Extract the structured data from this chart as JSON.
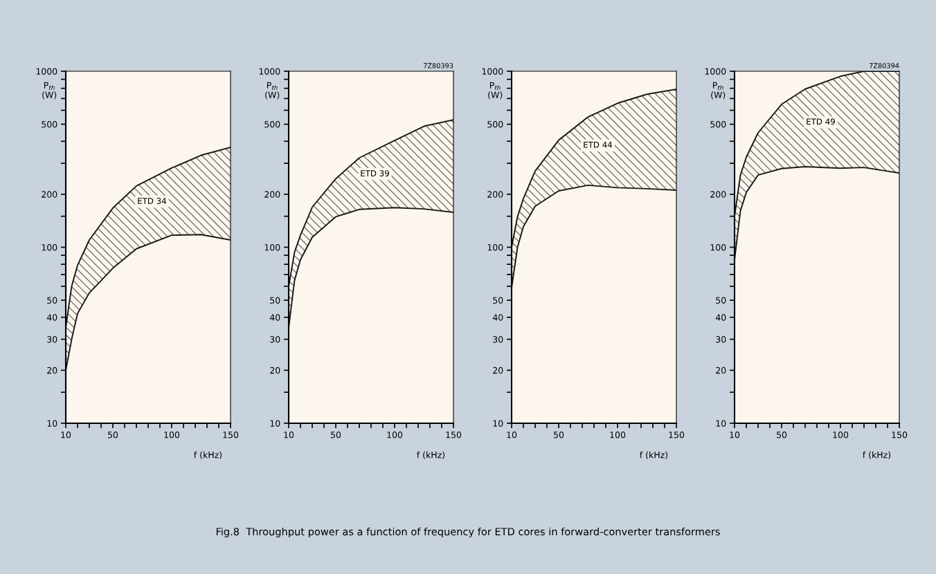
{
  "chart_data": [
    {
      "type": "line",
      "title": "Fig.8  Throughput power as a function of frequency for ETD cores in forward-converter transformers",
      "ylabel": "P$_{th}$\n(W)",
      "xlabel": "f (kHz)",
      "log": "y",
      "grid": false,
      "legend": false,
      "xlim": [
        10,
        150
      ],
      "xticks": [
        10,
        {
          "value": 20,
          "label": null
        },
        {
          "value": 30,
          "label": null
        },
        {
          "value": 40,
          "label": null
        },
        50,
        {
          "value": 60,
          "label": null
        },
        {
          "value": 70,
          "label": null
        },
        {
          "value": 80,
          "label": null
        },
        {
          "value": 90,
          "label": null
        },
        100,
        {
          "value": 110,
          "label": null
        },
        {
          "value": 120,
          "label": null
        },
        {
          "value": 130,
          "label": null
        },
        {
          "value": 140,
          "label": null
        },
        150
      ],
      "ylim": [
        10,
        1000
      ],
      "yticks": [
        10,
        {
          "value": 15,
          "label": null
        },
        20,
        30,
        40,
        50,
        {
          "value": 60,
          "label": null
        },
        {
          "value": 70,
          "label": null
        },
        {
          "value": 80,
          "label": null
        },
        {
          "value": 90,
          "label": null
        },
        100,
        {
          "value": 150,
          "label": null
        },
        200,
        {
          "value": 300,
          "label": null
        },
        {
          "value": 400,
          "label": null
        },
        500,
        {
          "value": 600,
          "label": null
        },
        {
          "value": 700,
          "label": null
        },
        {
          "value": 800,
          "label": null
        },
        {
          "value": 900,
          "label": null
        },
        1000
      ],
      "annotations": [
        "ETD 34"
      ],
      "series": [
        {
          "color": "#1a1a1a",
          "x": [
            10,
            15,
            20,
            30,
            50,
            70,
            100,
            125,
            150
          ],
          "values": [
            20,
            30,
            42,
            55,
            76,
            98,
            117,
            118,
            110
          ]
        },
        {
          "color": "#1a1a1a",
          "x": [
            10,
            15,
            20,
            30,
            50,
            70,
            100,
            125,
            150
          ],
          "values": [
            35,
            60,
            79,
            110,
            167,
            223,
            282,
            333,
            370
          ],
          "lower": [
            20,
            30,
            42,
            55,
            76,
            98,
            117,
            118,
            110
          ],
          "upper": [
            35,
            60,
            79,
            110,
            167,
            223,
            282,
            333,
            370
          ]
        }
      ]
    },
    {
      "type": "line",
      "ylabel": "P$_{th}$\n(W)",
      "xlabel": "f (kHz)",
      "log": "y",
      "grid": false,
      "legend": false,
      "xlim": [
        10,
        150
      ],
      "xticks": [
        10,
        {
          "value": 20,
          "label": null
        },
        {
          "value": 30,
          "label": null
        },
        {
          "value": 40,
          "label": null
        },
        50,
        {
          "value": 60,
          "label": null
        },
        {
          "value": 70,
          "label": null
        },
        {
          "value": 80,
          "label": null
        },
        {
          "value": 90,
          "label": null
        },
        100,
        {
          "value": 110,
          "label": null
        },
        {
          "value": 120,
          "label": null
        },
        {
          "value": 130,
          "label": null
        },
        {
          "value": 140,
          "label": null
        },
        150
      ],
      "ylim": [
        10,
        1000
      ],
      "yticks": [
        10,
        {
          "value": 15,
          "label": null
        },
        20,
        30,
        40,
        50,
        {
          "value": 60,
          "label": null
        },
        {
          "value": 70,
          "label": null
        },
        {
          "value": 80,
          "label": null
        },
        {
          "value": 90,
          "label": null
        },
        100,
        {
          "value": 150,
          "label": null
        },
        200,
        {
          "value": 300,
          "label": null
        },
        {
          "value": 400,
          "label": null
        },
        500,
        {
          "value": 600,
          "label": null
        },
        {
          "value": 700,
          "label": null
        },
        {
          "value": 800,
          "label": null
        },
        {
          "value": 900,
          "label": null
        },
        1000
      ],
      "annotations": [
        "ETD 39",
        "7Z80393"
      ],
      "series": [
        {
          "color": "#1a1a1a",
          "x": [
            10,
            15,
            20,
            30,
            50,
            70,
            100,
            125,
            150
          ],
          "values": [
            35,
            65,
            85,
            114,
            149,
            164,
            168,
            165,
            158
          ]
        },
        {
          "color": "#1a1a1a",
          "x": [
            10,
            15,
            20,
            30,
            50,
            70,
            100,
            125,
            150
          ],
          "values": [
            60,
            94,
            117,
            169,
            245,
            322,
            404,
            487,
            530
          ],
          "lower": [
            35,
            65,
            85,
            114,
            149,
            164,
            168,
            165,
            158
          ],
          "upper": [
            60,
            94,
            117,
            169,
            245,
            322,
            404,
            487,
            530
          ]
        }
      ]
    },
    {
      "type": "line",
      "ylabel": "P$_{th}$\n(W)",
      "xlabel": "f (kHz)",
      "log": "y",
      "grid": false,
      "legend": false,
      "xlim": [
        10,
        150
      ],
      "xticks": [
        10,
        {
          "value": 20,
          "label": null
        },
        {
          "value": 30,
          "label": null
        },
        {
          "value": 40,
          "label": null
        },
        50,
        {
          "value": 60,
          "label": null
        },
        {
          "value": 70,
          "label": null
        },
        {
          "value": 80,
          "label": null
        },
        {
          "value": 90,
          "label": null
        },
        100,
        {
          "value": 110,
          "label": null
        },
        {
          "value": 120,
          "label": null
        },
        {
          "value": 130,
          "label": null
        },
        {
          "value": 140,
          "label": null
        },
        150
      ],
      "ylim": [
        10,
        1000
      ],
      "yticks": [
        10,
        {
          "value": 15,
          "label": null
        },
        20,
        30,
        40,
        50,
        {
          "value": 60,
          "label": null
        },
        {
          "value": 70,
          "label": null
        },
        {
          "value": 80,
          "label": null
        },
        {
          "value": 90,
          "label": null
        },
        100,
        {
          "value": 150,
          "label": null
        },
        200,
        {
          "value": 300,
          "label": null
        },
        {
          "value": 400,
          "label": null
        },
        500,
        {
          "value": 600,
          "label": null
        },
        {
          "value": 700,
          "label": null
        },
        {
          "value": 800,
          "label": null
        },
        {
          "value": 900,
          "label": null
        },
        1000
      ],
      "annotations": [
        "ETD 44"
      ],
      "series": [
        {
          "color": "#1a1a1a",
          "x": [
            10,
            15,
            20,
            30,
            50,
            75,
            100,
            125,
            150
          ],
          "values": [
            59,
            100,
            131,
            171,
            209,
            225,
            218,
            215,
            211
          ]
        },
        {
          "color": "#1a1a1a",
          "x": [
            10,
            15,
            20,
            30,
            50,
            75,
            100,
            125,
            150
          ],
          "values": [
            100,
            149,
            189,
            271,
            406,
            550,
            658,
            740,
            790
          ],
          "lower": [
            59,
            100,
            131,
            171,
            209,
            225,
            218,
            215,
            211
          ],
          "upper": [
            100,
            149,
            189,
            271,
            406,
            550,
            658,
            740,
            790
          ]
        }
      ]
    },
    {
      "type": "line",
      "ylabel": "P$_{th}$\n(W)",
      "xlabel": "f (kHz)",
      "log": "y",
      "grid": false,
      "legend": false,
      "xlim": [
        10,
        150
      ],
      "xticks": [
        10,
        {
          "value": 20,
          "label": null
        },
        {
          "value": 30,
          "label": null
        },
        {
          "value": 40,
          "label": null
        },
        50,
        {
          "value": 60,
          "label": null
        },
        {
          "value": 70,
          "label": null
        },
        {
          "value": 80,
          "label": null
        },
        {
          "value": 90,
          "label": null
        },
        100,
        {
          "value": 110,
          "label": null
        },
        {
          "value": 120,
          "label": null
        },
        {
          "value": 130,
          "label": null
        },
        {
          "value": 140,
          "label": null
        },
        150
      ],
      "ylim": [
        10,
        1000
      ],
      "yticks": [
        10,
        {
          "value": 15,
          "label": null
        },
        20,
        30,
        40,
        50,
        {
          "value": 60,
          "label": null
        },
        {
          "value": 70,
          "label": null
        },
        {
          "value": 80,
          "label": null
        },
        {
          "value": 90,
          "label": null
        },
        100,
        {
          "value": 150,
          "label": null
        },
        200,
        {
          "value": 300,
          "label": null
        },
        {
          "value": 400,
          "label": null
        },
        500,
        {
          "value": 600,
          "label": null
        },
        {
          "value": 700,
          "label": null
        },
        {
          "value": 800,
          "label": null
        },
        {
          "value": 900,
          "label": null
        },
        1000
      ],
      "annotations": [
        "ETD 49",
        "7Z80394"
      ],
      "series": [
        {
          "color": "#1a1a1a",
          "x": [
            10,
            15,
            20,
            30,
            50,
            70,
            100,
            120,
            150
          ],
          "values": [
            85,
            161,
            205,
            257,
            280,
            287,
            281,
            284,
            264
          ]
        },
        {
          "color": "#1a1a1a",
          "x": [
            10,
            15,
            20,
            30,
            50,
            70,
            100,
            120,
            150
          ],
          "values": [
            150,
            257,
            325,
            447,
            649,
            792,
            936,
            1000,
            1000
          ],
          "lower": [
            85,
            161,
            205,
            257,
            280,
            287,
            281,
            284,
            264
          ],
          "upper": [
            150,
            257,
            325,
            447,
            649,
            792,
            936,
            1000,
            1000
          ]
        }
      ]
    }
  ]
}
